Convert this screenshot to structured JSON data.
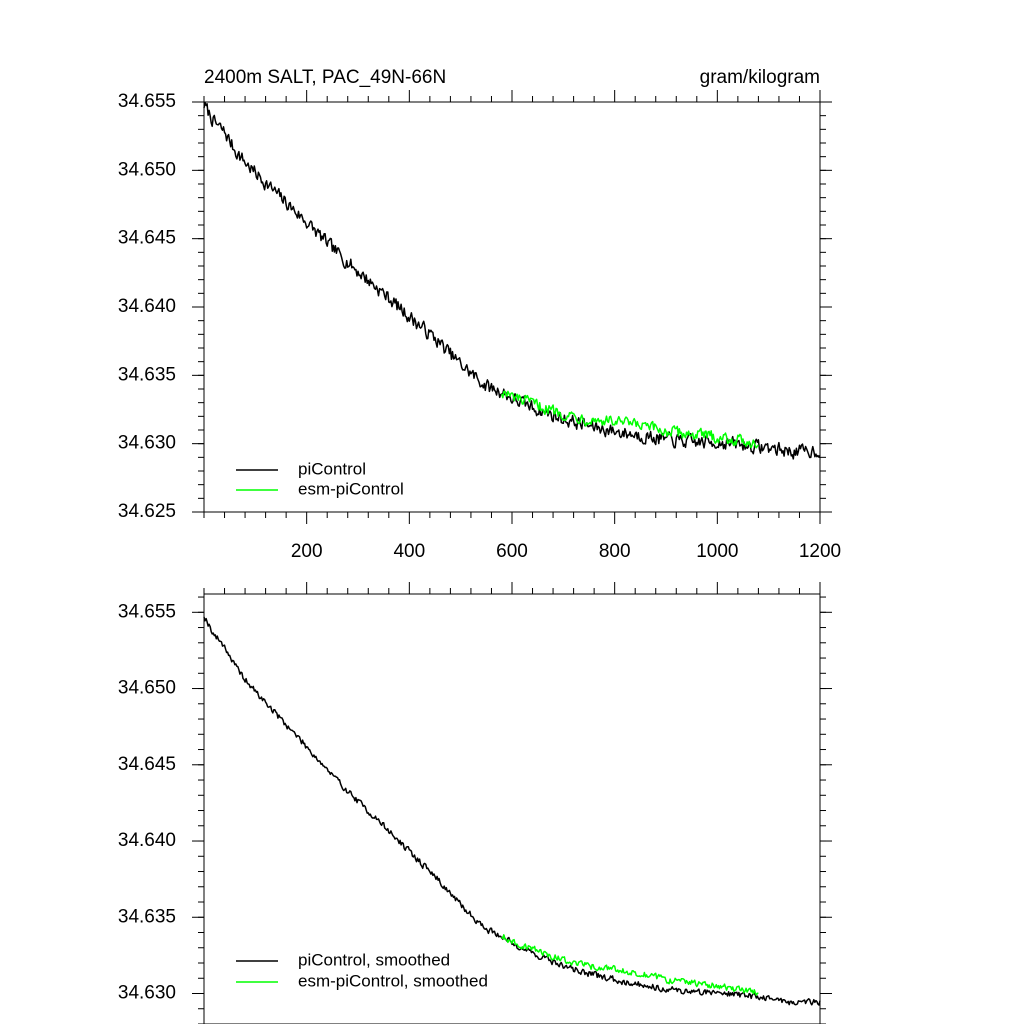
{
  "chart_data": [
    {
      "type": "line",
      "panel": "top",
      "title_left": "2400m SALT, PAC_49N-66N",
      "title_right": "gram/kilogram",
      "xlim": [
        0,
        1200
      ],
      "ylim": [
        34.625,
        34.655
      ],
      "x_ticks": [
        200,
        400,
        600,
        800,
        1000,
        1200
      ],
      "x_tick_labels": [
        "200",
        "400",
        "600",
        "800",
        "1000",
        "1200"
      ],
      "y_ticks": [
        34.625,
        34.63,
        34.635,
        34.64,
        34.645,
        34.65,
        34.655
      ],
      "y_tick_labels": [
        "34.625",
        "34.630",
        "34.635",
        "34.640",
        "34.645",
        "34.650",
        "34.655"
      ],
      "legend_position": "bottom-left",
      "series": [
        {
          "name": "piControl",
          "color": "#000000",
          "x": [
            0,
            20,
            40,
            60,
            80,
            100,
            150,
            200,
            250,
            300,
            350,
            400,
            450,
            500,
            550,
            580,
            600,
            650,
            700,
            750,
            800,
            850,
            900,
            950,
            1000,
            1050,
            1100,
            1150,
            1200
          ],
          "y": [
            34.6548,
            34.6535,
            34.6528,
            34.6515,
            34.6506,
            34.6498,
            34.648,
            34.6462,
            34.6443,
            34.6426,
            34.641,
            34.6393,
            34.6377,
            34.6358,
            34.6342,
            34.6338,
            34.6333,
            34.6325,
            34.6318,
            34.6313,
            34.6309,
            34.6306,
            34.6303,
            34.6301,
            34.6301,
            34.6299,
            34.6297,
            34.6294,
            34.6295
          ],
          "noise_amplitude": 0.0007
        },
        {
          "name": "esm-piControl",
          "color": "#00ff00",
          "x": [
            580,
            600,
            650,
            700,
            750,
            800,
            850,
            900,
            950,
            1000,
            1050,
            1080
          ],
          "y": [
            34.6338,
            34.6334,
            34.6328,
            34.6322,
            34.6318,
            34.6316,
            34.6313,
            34.6309,
            34.6307,
            34.6305,
            34.6302,
            34.6301
          ],
          "noise_amplitude": 0.0006
        }
      ]
    },
    {
      "type": "line",
      "panel": "bottom",
      "xlim": [
        0,
        1200
      ],
      "ylim": [
        34.628,
        34.6562
      ],
      "y_ticks": [
        34.63,
        34.635,
        34.64,
        34.645,
        34.65,
        34.655
      ],
      "y_tick_labels": [
        "34.630",
        "34.635",
        "34.640",
        "34.645",
        "34.650",
        "34.655"
      ],
      "legend_position": "bottom-left",
      "series": [
        {
          "name": "piControl, smoothed",
          "color": "#000000",
          "x": [
            0,
            20,
            40,
            60,
            80,
            100,
            150,
            200,
            250,
            300,
            350,
            400,
            450,
            500,
            550,
            580,
            600,
            650,
            700,
            750,
            800,
            850,
            900,
            950,
            1000,
            1050,
            1100,
            1150,
            1200
          ],
          "y": [
            34.6548,
            34.6535,
            34.6528,
            34.6515,
            34.6506,
            34.6498,
            34.648,
            34.6462,
            34.6443,
            34.6426,
            34.641,
            34.6393,
            34.6377,
            34.6358,
            34.6342,
            34.6338,
            34.6333,
            34.6325,
            34.6318,
            34.6313,
            34.6309,
            34.6306,
            34.6303,
            34.6301,
            34.6301,
            34.6299,
            34.6297,
            34.6294,
            34.6295
          ],
          "noise_amplitude": 0.0003
        },
        {
          "name": "esm-piControl, smoothed",
          "color": "#00ff00",
          "x": [
            580,
            600,
            650,
            700,
            750,
            800,
            850,
            900,
            950,
            1000,
            1050,
            1080
          ],
          "y": [
            34.6338,
            34.6334,
            34.6328,
            34.6322,
            34.6318,
            34.6316,
            34.6313,
            34.6309,
            34.6307,
            34.6305,
            34.6302,
            34.6301
          ],
          "noise_amplitude": 0.0003
        }
      ]
    }
  ]
}
